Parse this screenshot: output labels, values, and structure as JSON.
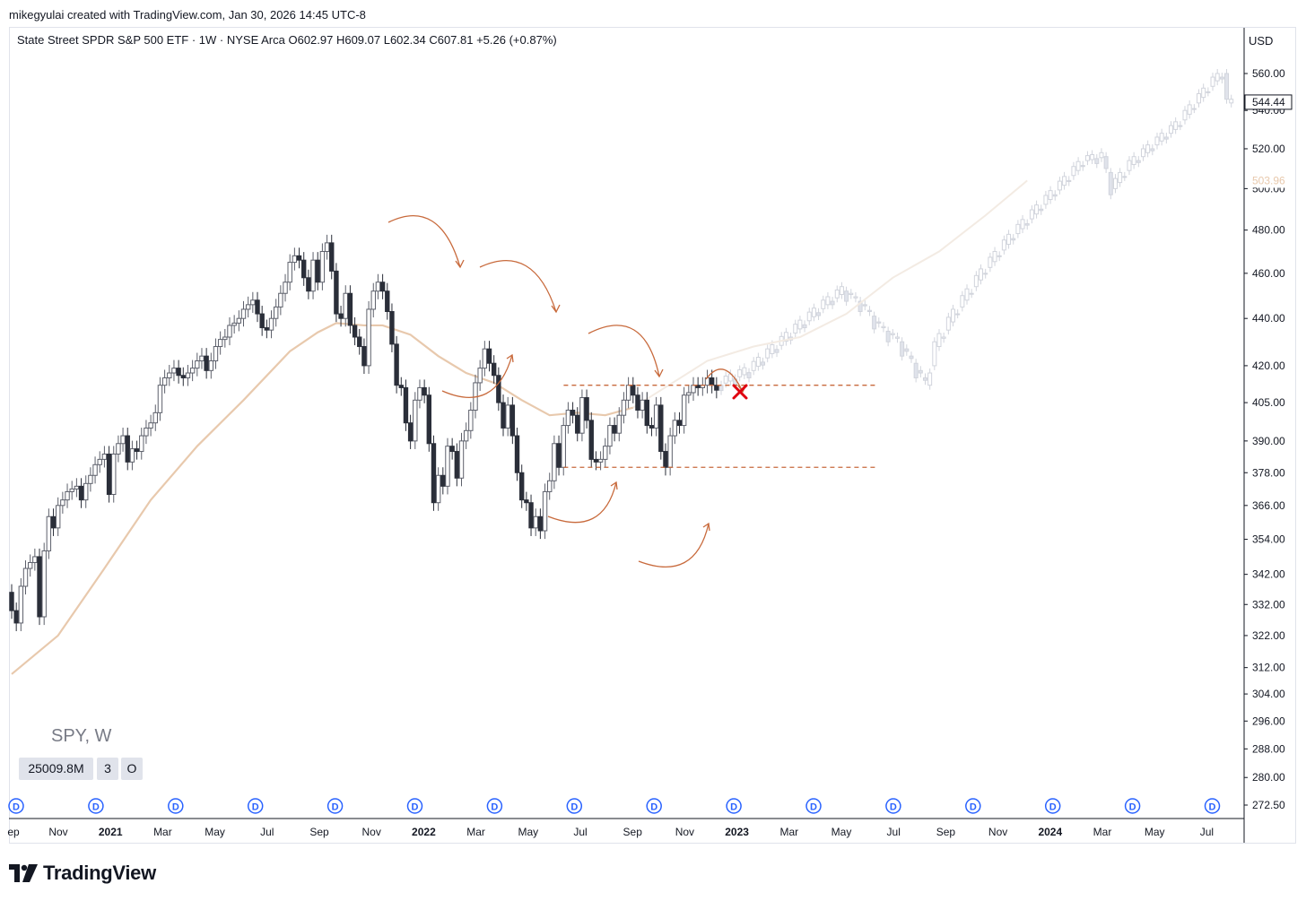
{
  "header": {
    "credit": "mikegyulai created with TradingView.com, Jan 30, 2026 14:45 UTC-8",
    "legend": "State Street SPDR S&P 500 ETF · 1W · NYSE Arca  O602.97  H609.07  L602.34  C607.81  +5.26 (+0.87%)"
  },
  "symbol_label": "SPY, W",
  "volume_boxes": [
    "25009.8M",
    "3",
    "O"
  ],
  "brand": "TradingView",
  "colors": {
    "up_candle_border": "#5d606b",
    "down_candle": "#2a2e39",
    "moving_average": "#e8c9ad",
    "annotation": "#c86a3c",
    "cross": "#e0000f",
    "dividend_marker": "#2962ff"
  },
  "chart_data": {
    "type": "candlestick",
    "title": "State Street SPDR S&P 500 ETF · 1W · NYSE Arca",
    "currency": "USD",
    "y_axis": {
      "ticks": [
        "560.00",
        "540.00",
        "520.00",
        "500.00",
        "480.00",
        "460.00",
        "440.00",
        "420.00",
        "405.00",
        "390.00",
        "378.00",
        "366.00",
        "354.00",
        "342.00",
        "332.00",
        "322.00",
        "312.00",
        "304.00",
        "296.00",
        "288.00",
        "280.00",
        "272.50"
      ],
      "scale": "log",
      "range": [
        270,
        590
      ]
    },
    "x_axis": {
      "ticks": [
        {
          "label": "ep",
          "bold": false
        },
        {
          "label": "Nov",
          "bold": false
        },
        {
          "label": "2021",
          "bold": true
        },
        {
          "label": "Mar",
          "bold": false
        },
        {
          "label": "May",
          "bold": false
        },
        {
          "label": "Jul",
          "bold": false
        },
        {
          "label": "Sep",
          "bold": false
        },
        {
          "label": "Nov",
          "bold": false
        },
        {
          "label": "2022",
          "bold": true
        },
        {
          "label": "Mar",
          "bold": false
        },
        {
          "label": "May",
          "bold": false
        },
        {
          "label": "Jul",
          "bold": false
        },
        {
          "label": "Sep",
          "bold": false
        },
        {
          "label": "Nov",
          "bold": false
        },
        {
          "label": "2023",
          "bold": true
        },
        {
          "label": "Mar",
          "bold": false
        },
        {
          "label": "May",
          "bold": false
        },
        {
          "label": "Jul",
          "bold": false
        },
        {
          "label": "Sep",
          "bold": false
        },
        {
          "label": "Nov",
          "bold": false
        },
        {
          "label": "2024",
          "bold": true
        },
        {
          "label": "Mar",
          "bold": false
        },
        {
          "label": "May",
          "bold": false
        },
        {
          "label": "Jul",
          "bold": false
        }
      ]
    },
    "price_labels": [
      {
        "value": "544.44",
        "price": 544.44,
        "style": "current"
      },
      {
        "value": "503.96",
        "price": 503.96,
        "style": "moving-average"
      }
    ],
    "dividend_markers": {
      "label": "D",
      "count": 16
    },
    "moving_average_series": [
      {
        "week": 0,
        "value": 310
      },
      {
        "week": 10,
        "value": 322
      },
      {
        "week": 20,
        "value": 344
      },
      {
        "week": 30,
        "value": 368
      },
      {
        "week": 40,
        "value": 388
      },
      {
        "week": 50,
        "value": 406
      },
      {
        "week": 60,
        "value": 426
      },
      {
        "week": 66,
        "value": 434
      },
      {
        "week": 70,
        "value": 438
      },
      {
        "week": 76,
        "value": 437
      },
      {
        "week": 80,
        "value": 437
      },
      {
        "week": 86,
        "value": 433
      },
      {
        "week": 92,
        "value": 424
      },
      {
        "week": 98,
        "value": 417
      },
      {
        "week": 104,
        "value": 413
      },
      {
        "week": 110,
        "value": 406
      },
      {
        "week": 116,
        "value": 400
      },
      {
        "week": 122,
        "value": 401
      },
      {
        "week": 128,
        "value": 400
      },
      {
        "week": 134,
        "value": 403
      }
    ],
    "moving_average_projection": [
      {
        "week": 134,
        "value": 403
      },
      {
        "week": 140,
        "value": 410
      },
      {
        "week": 150,
        "value": 422
      },
      {
        "week": 160,
        "value": 428
      },
      {
        "week": 170,
        "value": 432
      },
      {
        "week": 180,
        "value": 442
      },
      {
        "week": 190,
        "value": 458
      },
      {
        "week": 200,
        "value": 470
      },
      {
        "week": 210,
        "value": 487
      },
      {
        "week": 219,
        "value": 504
      }
    ],
    "candles": [
      {
        "w": 0,
        "o": 336,
        "c": 330
      },
      {
        "w": 1,
        "o": 330,
        "c": 326
      },
      {
        "w": 2,
        "o": 326,
        "c": 338
      },
      {
        "w": 3,
        "o": 338,
        "c": 344
      },
      {
        "w": 4,
        "o": 344,
        "c": 346
      },
      {
        "w": 5,
        "o": 346,
        "c": 348
      },
      {
        "w": 6,
        "o": 348,
        "c": 328
      },
      {
        "w": 7,
        "o": 328,
        "c": 350
      },
      {
        "w": 8,
        "o": 350,
        "c": 362
      },
      {
        "w": 9,
        "o": 362,
        "c": 358
      },
      {
        "w": 10,
        "o": 358,
        "c": 366
      },
      {
        "w": 11,
        "o": 366,
        "c": 368
      },
      {
        "w": 12,
        "o": 368,
        "c": 371
      },
      {
        "w": 13,
        "o": 371,
        "c": 372
      },
      {
        "w": 14,
        "o": 372,
        "c": 373
      },
      {
        "w": 15,
        "o": 373,
        "c": 368
      },
      {
        "w": 16,
        "o": 368,
        "c": 374
      },
      {
        "w": 17,
        "o": 374,
        "c": 377
      },
      {
        "w": 18,
        "o": 377,
        "c": 381
      },
      {
        "w": 19,
        "o": 381,
        "c": 383
      },
      {
        "w": 20,
        "o": 383,
        "c": 385
      },
      {
        "w": 21,
        "o": 385,
        "c": 370
      },
      {
        "w": 22,
        "o": 370,
        "c": 385
      },
      {
        "w": 23,
        "o": 385,
        "c": 389
      },
      {
        "w": 24,
        "o": 389,
        "c": 392
      },
      {
        "w": 25,
        "o": 392,
        "c": 382
      },
      {
        "w": 26,
        "o": 382,
        "c": 387
      },
      {
        "w": 27,
        "o": 387,
        "c": 386
      },
      {
        "w": 28,
        "o": 386,
        "c": 392
      },
      {
        "w": 29,
        "o": 392,
        "c": 395
      },
      {
        "w": 30,
        "o": 395,
        "c": 397
      },
      {
        "w": 31,
        "o": 397,
        "c": 401
      },
      {
        "w": 32,
        "o": 401,
        "c": 412
      },
      {
        "w": 33,
        "o": 412,
        "c": 415
      },
      {
        "w": 34,
        "o": 415,
        "c": 417
      },
      {
        "w": 35,
        "o": 417,
        "c": 419
      },
      {
        "w": 36,
        "o": 419,
        "c": 416
      },
      {
        "w": 37,
        "o": 416,
        "c": 415
      },
      {
        "w": 38,
        "o": 415,
        "c": 417
      },
      {
        "w": 39,
        "o": 417,
        "c": 419
      },
      {
        "w": 40,
        "o": 419,
        "c": 422
      },
      {
        "w": 41,
        "o": 422,
        "c": 424
      },
      {
        "w": 42,
        "o": 424,
        "c": 418
      },
      {
        "w": 43,
        "o": 418,
        "c": 422
      },
      {
        "w": 44,
        "o": 422,
        "c": 428
      },
      {
        "w": 45,
        "o": 428,
        "c": 431
      },
      {
        "w": 46,
        "o": 431,
        "c": 432
      },
      {
        "w": 47,
        "o": 432,
        "c": 437
      },
      {
        "w": 48,
        "o": 437,
        "c": 438
      },
      {
        "w": 49,
        "o": 438,
        "c": 440
      },
      {
        "w": 50,
        "o": 440,
        "c": 444
      },
      {
        "w": 51,
        "o": 444,
        "c": 446
      },
      {
        "w": 52,
        "o": 446,
        "c": 448
      },
      {
        "w": 53,
        "o": 448,
        "c": 442
      },
      {
        "w": 54,
        "o": 442,
        "c": 436
      },
      {
        "w": 55,
        "o": 436,
        "c": 435
      },
      {
        "w": 56,
        "o": 435,
        "c": 440
      },
      {
        "w": 57,
        "o": 440,
        "c": 445
      },
      {
        "w": 58,
        "o": 445,
        "c": 451
      },
      {
        "w": 59,
        "o": 451,
        "c": 456
      },
      {
        "w": 60,
        "o": 456,
        "c": 465
      },
      {
        "w": 61,
        "o": 465,
        "c": 468
      },
      {
        "w": 62,
        "o": 468,
        "c": 466
      },
      {
        "w": 63,
        "o": 466,
        "c": 458
      },
      {
        "w": 64,
        "o": 458,
        "c": 452
      },
      {
        "w": 65,
        "o": 452,
        "c": 466
      },
      {
        "w": 66,
        "o": 466,
        "c": 456
      },
      {
        "w": 67,
        "o": 456,
        "c": 470
      },
      {
        "w": 68,
        "o": 470,
        "c": 474
      },
      {
        "w": 69,
        "o": 474,
        "c": 461
      },
      {
        "w": 70,
        "o": 461,
        "c": 442
      },
      {
        "w": 71,
        "o": 442,
        "c": 440
      },
      {
        "w": 72,
        "o": 440,
        "c": 451
      },
      {
        "w": 73,
        "o": 451,
        "c": 437
      },
      {
        "w": 74,
        "o": 437,
        "c": 432
      },
      {
        "w": 75,
        "o": 432,
        "c": 428
      },
      {
        "w": 76,
        "o": 428,
        "c": 420
      },
      {
        "w": 77,
        "o": 420,
        "c": 444
      },
      {
        "w": 78,
        "o": 444,
        "c": 452
      },
      {
        "w": 79,
        "o": 452,
        "c": 456
      },
      {
        "w": 80,
        "o": 456,
        "c": 452
      },
      {
        "w": 81,
        "o": 452,
        "c": 443
      },
      {
        "w": 82,
        "o": 443,
        "c": 429
      },
      {
        "w": 83,
        "o": 429,
        "c": 412
      },
      {
        "w": 84,
        "o": 412,
        "c": 411
      },
      {
        "w": 85,
        "o": 411,
        "c": 397
      },
      {
        "w": 86,
        "o": 397,
        "c": 390
      },
      {
        "w": 87,
        "o": 390,
        "c": 406
      },
      {
        "w": 88,
        "o": 406,
        "c": 411
      },
      {
        "w": 89,
        "o": 411,
        "c": 408
      },
      {
        "w": 90,
        "o": 408,
        "c": 389
      },
      {
        "w": 91,
        "o": 389,
        "c": 367
      },
      {
        "w": 92,
        "o": 367,
        "c": 377
      },
      {
        "w": 93,
        "o": 377,
        "c": 373
      },
      {
        "w": 94,
        "o": 373,
        "c": 388
      },
      {
        "w": 95,
        "o": 388,
        "c": 386
      },
      {
        "w": 96,
        "o": 386,
        "c": 376
      },
      {
        "w": 97,
        "o": 376,
        "c": 390
      },
      {
        "w": 98,
        "o": 390,
        "c": 394
      },
      {
        "w": 99,
        "o": 394,
        "c": 402
      },
      {
        "w": 100,
        "o": 402,
        "c": 413
      },
      {
        "w": 101,
        "o": 413,
        "c": 419
      },
      {
        "w": 102,
        "o": 419,
        "c": 427
      },
      {
        "w": 103,
        "o": 427,
        "c": 421
      },
      {
        "w": 104,
        "o": 421,
        "c": 416
      },
      {
        "w": 105,
        "o": 416,
        "c": 405
      },
      {
        "w": 106,
        "o": 405,
        "c": 395
      },
      {
        "w": 107,
        "o": 395,
        "c": 404
      },
      {
        "w": 108,
        "o": 404,
        "c": 392
      },
      {
        "w": 109,
        "o": 392,
        "c": 378
      },
      {
        "w": 110,
        "o": 378,
        "c": 368
      },
      {
        "w": 111,
        "o": 368,
        "c": 367
      },
      {
        "w": 112,
        "o": 367,
        "c": 358
      },
      {
        "w": 113,
        "o": 358,
        "c": 362
      },
      {
        "w": 114,
        "o": 362,
        "c": 357
      },
      {
        "w": 115,
        "o": 357,
        "c": 371
      },
      {
        "w": 116,
        "o": 371,
        "c": 375
      },
      {
        "w": 117,
        "o": 375,
        "c": 389
      },
      {
        "w": 118,
        "o": 389,
        "c": 380
      },
      {
        "w": 119,
        "o": 380,
        "c": 396
      },
      {
        "w": 120,
        "o": 396,
        "c": 402
      },
      {
        "w": 121,
        "o": 402,
        "c": 400
      },
      {
        "w": 122,
        "o": 400,
        "c": 393
      },
      {
        "w": 123,
        "o": 393,
        "c": 407
      },
      {
        "w": 124,
        "o": 407,
        "c": 398
      },
      {
        "w": 125,
        "o": 398,
        "c": 383
      },
      {
        "w": 126,
        "o": 383,
        "c": 382
      },
      {
        "w": 127,
        "o": 382,
        "c": 383
      },
      {
        "w": 128,
        "o": 383,
        "c": 388
      },
      {
        "w": 129,
        "o": 388,
        "c": 396
      },
      {
        "w": 130,
        "o": 396,
        "c": 393
      },
      {
        "w": 131,
        "o": 393,
        "c": 400
      },
      {
        "w": 132,
        "o": 400,
        "c": 406
      },
      {
        "w": 133,
        "o": 406,
        "c": 412
      },
      {
        "w": 134,
        "o": 412,
        "c": 408
      },
      {
        "w": 135,
        "o": 408,
        "c": 402
      },
      {
        "w": 136,
        "o": 402,
        "c": 406
      },
      {
        "w": 137,
        "o": 406,
        "c": 396
      },
      {
        "w": 138,
        "o": 396,
        "c": 395
      },
      {
        "w": 139,
        "o": 395,
        "c": 404
      },
      {
        "w": 140,
        "o": 404,
        "c": 386
      },
      {
        "w": 141,
        "o": 386,
        "c": 380
      },
      {
        "w": 142,
        "o": 380,
        "c": 392
      },
      {
        "w": 143,
        "o": 392,
        "c": 398
      },
      {
        "w": 144,
        "o": 398,
        "c": 396
      },
      {
        "w": 145,
        "o": 396,
        "c": 408
      },
      {
        "w": 146,
        "o": 408,
        "c": 409
      },
      {
        "w": 147,
        "o": 409,
        "c": 412
      },
      {
        "w": 148,
        "o": 412,
        "c": 411
      },
      {
        "w": 149,
        "o": 411,
        "c": 412
      },
      {
        "w": 150,
        "o": 412,
        "c": 415
      },
      {
        "w": 151,
        "o": 415,
        "c": 412
      },
      {
        "w": 152,
        "o": 412,
        "c": 410
      }
    ],
    "faded_candles_trend": [
      {
        "w": 153,
        "v": 412
      },
      {
        "w": 160,
        "v": 418
      },
      {
        "w": 168,
        "v": 432
      },
      {
        "w": 176,
        "v": 446
      },
      {
        "w": 180,
        "v": 452
      },
      {
        "w": 184,
        "v": 446
      },
      {
        "w": 188,
        "v": 436
      },
      {
        "w": 192,
        "v": 430
      },
      {
        "w": 196,
        "v": 418
      },
      {
        "w": 198,
        "v": 412
      },
      {
        "w": 200,
        "v": 428
      },
      {
        "w": 204,
        "v": 442
      },
      {
        "w": 210,
        "v": 460
      },
      {
        "w": 216,
        "v": 476
      },
      {
        "w": 222,
        "v": 490
      },
      {
        "w": 228,
        "v": 504
      },
      {
        "w": 232,
        "v": 514
      },
      {
        "w": 236,
        "v": 516
      },
      {
        "w": 238,
        "v": 500
      },
      {
        "w": 242,
        "v": 512
      },
      {
        "w": 246,
        "v": 520
      },
      {
        "w": 252,
        "v": 532
      },
      {
        "w": 256,
        "v": 544
      },
      {
        "w": 260,
        "v": 556
      },
      {
        "w": 262,
        "v": 560
      },
      {
        "w": 263,
        "v": 544
      }
    ],
    "annotations": {
      "range_box": {
        "upper": 412,
        "lower": 380,
        "from_week": 120,
        "to_week": 156
      },
      "failed_breakout_marker": {
        "week": 124,
        "price": 410
      }
    }
  }
}
